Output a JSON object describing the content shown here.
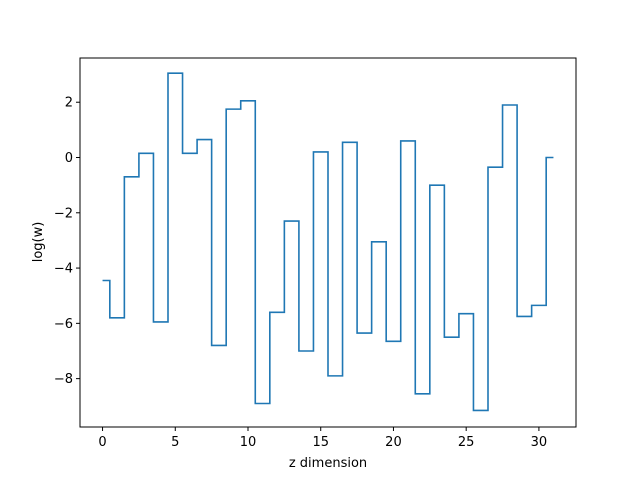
{
  "chart_data": {
    "type": "line",
    "drawstyle": "steps-mid",
    "title": "",
    "xlabel": "z dimension",
    "ylabel": "log(w)",
    "xlim": [
      -1.55,
      32.55
    ],
    "ylim": [
      -9.75,
      3.6
    ],
    "xticks": [
      0,
      5,
      10,
      15,
      20,
      25,
      30
    ],
    "yticks": [
      -8,
      -6,
      -4,
      -2,
      0,
      2
    ],
    "grid": false,
    "legend": "none",
    "series": [
      {
        "color": "#1f77b4",
        "x": [
          0,
          1,
          2,
          3,
          4,
          5,
          6,
          7,
          8,
          9,
          10,
          11,
          12,
          13,
          14,
          15,
          16,
          17,
          18,
          19,
          20,
          21,
          22,
          23,
          24,
          25,
          26,
          27,
          28,
          29,
          30,
          31
        ],
        "y": [
          -4.45,
          -5.8,
          -0.7,
          0.15,
          -5.95,
          3.05,
          0.15,
          0.65,
          -6.8,
          1.75,
          2.05,
          -8.9,
          -5.6,
          -2.3,
          -7.0,
          0.2,
          -7.9,
          0.55,
          -6.35,
          -3.05,
          -6.65,
          0.6,
          -8.55,
          -1.0,
          -6.5,
          -5.65,
          -9.15,
          -0.35,
          1.9,
          -5.75,
          -5.35,
          0.0
        ]
      }
    ]
  }
}
